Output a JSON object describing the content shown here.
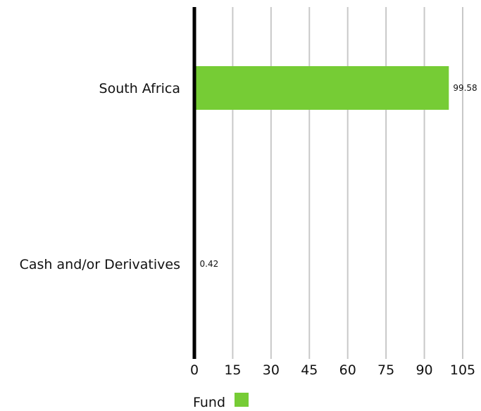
{
  "chart_data": {
    "type": "bar",
    "orientation": "horizontal",
    "categories": [
      "South Africa",
      "Cash and/or Derivatives"
    ],
    "series": [
      {
        "name": "Fund",
        "values": [
          99.58,
          0.42
        ],
        "value_labels": [
          "99.58",
          "0.42"
        ],
        "color": "#76cc35"
      }
    ],
    "xlim": [
      0,
      105
    ],
    "x_ticks": [
      "0",
      "15",
      "30",
      "45",
      "60",
      "75",
      "90",
      "105"
    ],
    "grid": "vertical",
    "legend_position": "bottom-left",
    "title": "",
    "xlabel": "",
    "ylabel": ""
  }
}
